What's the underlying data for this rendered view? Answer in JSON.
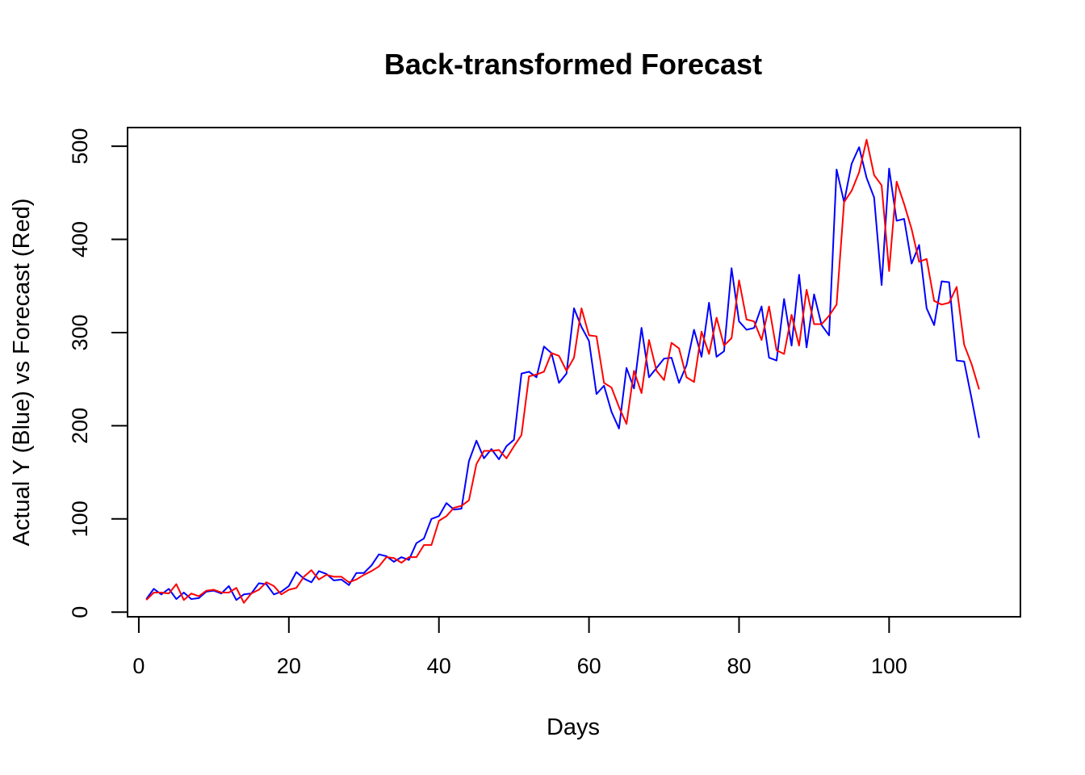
{
  "chart_data": {
    "type": "line",
    "title": "Back-transformed Forecast",
    "xlabel": "Days",
    "ylabel": "Actual Y (Blue) vs Forecast (Red)",
    "xlim": [
      -1.5,
      117.5
    ],
    "ylim": [
      -5,
      520
    ],
    "x_ticks": [
      0,
      20,
      40,
      60,
      80,
      100
    ],
    "x_tick_labels": [
      "0",
      "20",
      "40",
      "60",
      "80",
      "100"
    ],
    "y_ticks": [
      0,
      100,
      200,
      300,
      400,
      500
    ],
    "y_tick_labels": [
      "0",
      "100",
      "200",
      "300",
      "400",
      "500"
    ],
    "grid": false,
    "legend": "none",
    "x": [
      1,
      2,
      3,
      4,
      5,
      6,
      7,
      8,
      9,
      10,
      11,
      12,
      13,
      14,
      15,
      16,
      17,
      18,
      19,
      20,
      21,
      22,
      23,
      24,
      25,
      26,
      27,
      28,
      29,
      30,
      31,
      32,
      33,
      34,
      35,
      36,
      37,
      38,
      39,
      40,
      41,
      42,
      43,
      44,
      45,
      46,
      47,
      48,
      49,
      50,
      51,
      52,
      53,
      54,
      55,
      56,
      57,
      58,
      59,
      60,
      61,
      62,
      63,
      64,
      65,
      66,
      67,
      68,
      69,
      70,
      71,
      72,
      73,
      74,
      75,
      76,
      77,
      78,
      79,
      80,
      81,
      82,
      83,
      84,
      85,
      86,
      87,
      88,
      89,
      90,
      91,
      92,
      93,
      94,
      95,
      96,
      97,
      98,
      99,
      100,
      101,
      102,
      103,
      104,
      105,
      106,
      107,
      108,
      109,
      110,
      111,
      112
    ],
    "series": [
      {
        "color": "#0000ff",
        "values": [
          14,
          25,
          19,
          25,
          14,
          21,
          14,
          15,
          22,
          23,
          20,
          28,
          13,
          19,
          20,
          31,
          30,
          19,
          22,
          28,
          43,
          36,
          32,
          44,
          41,
          34,
          35,
          29,
          42,
          42,
          50,
          62,
          60,
          54,
          59,
          56,
          74,
          79,
          100,
          103,
          117,
          110,
          111,
          162,
          184,
          165,
          175,
          164,
          178,
          185,
          256,
          258,
          252,
          285,
          278,
          246,
          256,
          326,
          306,
          291,
          234,
          243,
          215,
          197,
          262,
          240,
          305,
          252,
          262,
          272,
          273,
          246,
          265,
          303,
          274,
          332,
          274,
          280,
          369,
          312,
          303,
          305,
          328,
          273,
          270,
          336,
          286,
          362,
          284,
          341,
          308,
          297,
          475,
          440,
          481,
          499,
          466,
          445,
          351,
          476,
          420,
          422,
          374,
          394,
          326,
          308,
          355,
          354,
          270,
          269,
          229,
          187
        ]
      },
      {
        "color": "#ff0000",
        "values": [
          13,
          21,
          21,
          20,
          30,
          13,
          20,
          17,
          23,
          24,
          21,
          21,
          26,
          10,
          20,
          24,
          32,
          28,
          19,
          24,
          26,
          38,
          45,
          35,
          40,
          38,
          38,
          32,
          35,
          40,
          44,
          49,
          59,
          58,
          53,
          59,
          59,
          72,
          72,
          98,
          103,
          112,
          114,
          120,
          159,
          173,
          173,
          174,
          165,
          178,
          190,
          253,
          255,
          258,
          278,
          275,
          259,
          273,
          326,
          297,
          296,
          246,
          241,
          220,
          202,
          259,
          235,
          292,
          259,
          249,
          289,
          283,
          252,
          247,
          301,
          277,
          316,
          286,
          294,
          356,
          314,
          312,
          292,
          328,
          281,
          277,
          319,
          286,
          346,
          309,
          309,
          318,
          330,
          440,
          452,
          472,
          507,
          469,
          458,
          366,
          462,
          438,
          411,
          376,
          379,
          334,
          330,
          332,
          349,
          287,
          266,
          239
        ]
      }
    ]
  }
}
